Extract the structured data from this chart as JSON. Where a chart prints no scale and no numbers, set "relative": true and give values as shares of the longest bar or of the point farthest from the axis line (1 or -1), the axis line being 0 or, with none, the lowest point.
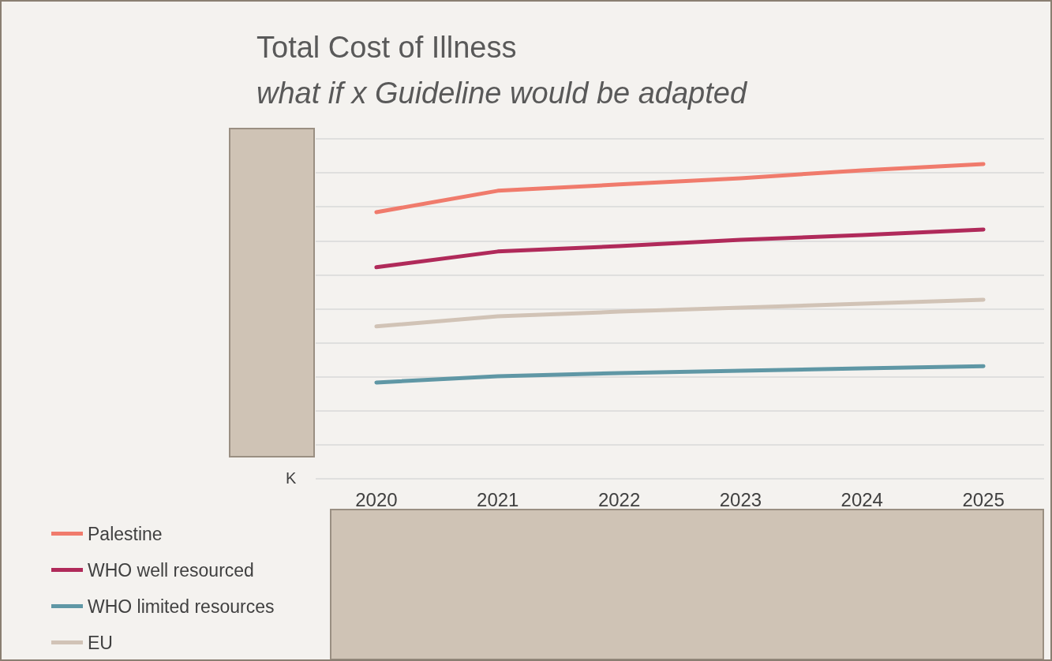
{
  "chart_data": {
    "type": "line",
    "title": "Total Cost of Illness",
    "subtitle": "what if x Guideline would be adapted",
    "ylabel": "K",
    "categories": [
      "2020",
      "2021",
      "2022",
      "2023",
      "2024",
      "2025"
    ],
    "relative": true,
    "grid": "y",
    "legend": "bottom left",
    "marker": "none",
    "line_style": "solid",
    "series": [
      {
        "name": "Palestine",
        "color": "#f07b6c",
        "values": [
          0.847,
          0.915,
          0.935,
          0.955,
          0.98,
          1
        ]
      },
      {
        "name": "WHO well resourced",
        "color": "#b02a5a",
        "values": [
          0.672,
          0.722,
          0.739,
          0.759,
          0.774,
          0.792
        ]
      },
      {
        "name": "WHO limited resources",
        "color": "#5f97a5",
        "values": [
          0.306,
          0.326,
          0.336,
          0.343,
          0.351,
          0.358
        ]
      },
      {
        "name": "EU",
        "color": "#d1c3b6",
        "values": [
          0.484,
          0.516,
          0.531,
          0.544,
          0.556,
          0.569
        ]
      }
    ]
  }
}
